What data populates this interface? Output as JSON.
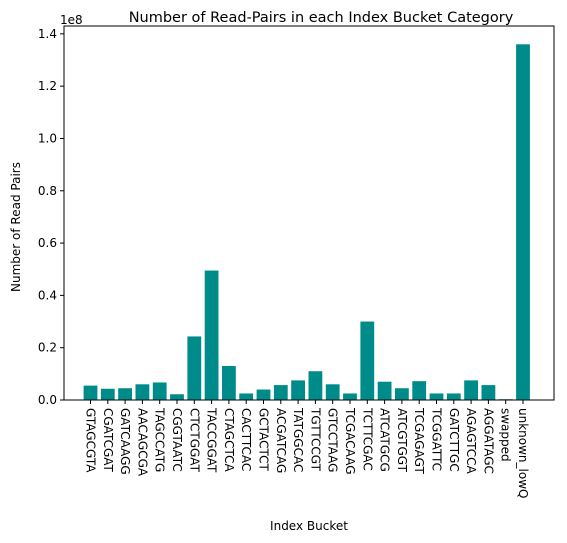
{
  "chart_data": {
    "type": "bar",
    "title": "Number of Read-Pairs in each Index Bucket Category",
    "xlabel": "Index Bucket",
    "ylabel": "Number of Read Pairs",
    "scale_label": "1e8",
    "ylim": [
      0,
      1.43
    ],
    "yticks": [
      "0.0",
      "0.2",
      "0.4",
      "0.6",
      "0.8",
      "1.0",
      "1.2",
      "1.4"
    ],
    "bar_color": "#008b8b",
    "categories": [
      "GTAGCGTA",
      "CGATCGAT",
      "GATCAAGG",
      "AACAGCGA",
      "TAGCCATG",
      "CGGTAATC",
      "CTCTGGAT",
      "TACCGGAT",
      "CTAGCTCA",
      "CACTTCAC",
      "GCTACTCT",
      "ACGATCAG",
      "TATGGCAC",
      "TGTTCCGT",
      "GTCCTAAG",
      "TCGACAAG",
      "TCTTCGAC",
      "ATCATGCG",
      "ATCGTGGT",
      "TCGAGAGT",
      "TCGGATTC",
      "GATCTTGC",
      "AGAGTCCA",
      "AGGATAGC",
      "swapped",
      "unknown_lowQ"
    ],
    "values": [
      0.055,
      0.043,
      0.045,
      0.06,
      0.067,
      0.022,
      0.243,
      0.495,
      0.13,
      0.025,
      0.04,
      0.057,
      0.075,
      0.11,
      0.06,
      0.025,
      0.3,
      0.07,
      0.045,
      0.072,
      0.025,
      0.025,
      0.075,
      0.057,
      0.003,
      1.36
    ]
  }
}
